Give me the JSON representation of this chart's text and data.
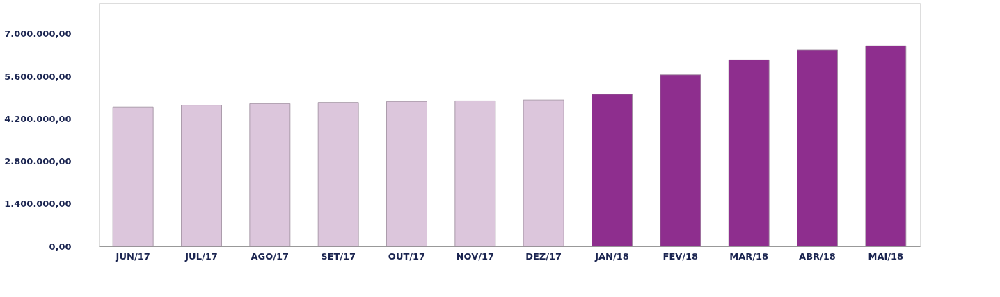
{
  "chart_data": {
    "type": "bar",
    "categories": [
      "JUN/17",
      "JUL/17",
      "AGO/17",
      "SET/17",
      "OUT/17",
      "NOV/17",
      "DEZ/17",
      "JAN/18",
      "FEV/18",
      "MAR/18",
      "ABR/18",
      "MAI/18"
    ],
    "values": [
      4590000,
      4650000,
      4700000,
      4740000,
      4770000,
      4790000,
      4820000,
      5010000,
      5650000,
      6140000,
      6470000,
      6600000
    ],
    "colors": [
      "#dcc6dc",
      "#dcc6dc",
      "#dcc6dc",
      "#dcc6dc",
      "#dcc6dc",
      "#dcc6dc",
      "#dcc6dc",
      "#8e2e8e",
      "#8e2e8e",
      "#8e2e8e",
      "#8e2e8e",
      "#8e2e8e"
    ],
    "ylim": [
      0,
      8000000
    ],
    "yticks": [
      {
        "value": 0,
        "label": "0,00"
      },
      {
        "value": 1400000,
        "label": "1.400.000,00"
      },
      {
        "value": 2800000,
        "label": "2.800.000,00"
      },
      {
        "value": 4200000,
        "label": "4.200.000,00"
      },
      {
        "value": 5600000,
        "label": "5.600.000,00"
      },
      {
        "value": 7000000,
        "label": "7.000.000,00"
      }
    ],
    "grid": false
  }
}
